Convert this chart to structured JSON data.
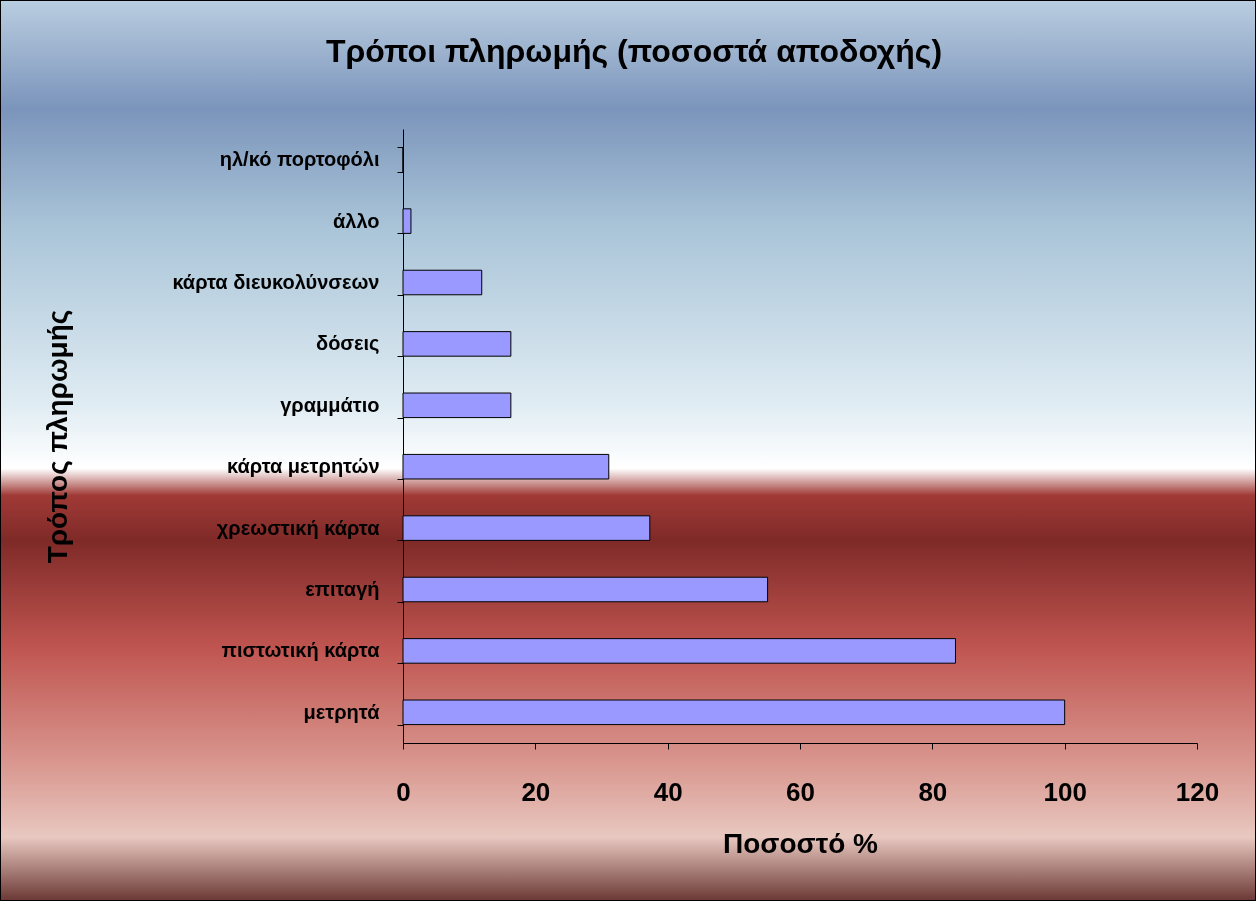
{
  "chart_data": {
    "type": "bar",
    "orientation": "horizontal",
    "title": "Τρόποι πληρωμής (ποσοστά αποδοχής)",
    "xlabel": "Ποσοστό %",
    "ylabel": "Τρόπος πληρωμής",
    "categories": [
      "ηλ/κό πορτοφόλι",
      "άλλο",
      "κάρτα διευκολύνσεων",
      "δόσεις",
      "γραμμάτιο",
      "κάρτα μετρητών",
      "χρεωστική κάρτα",
      "επιταγή",
      "πιστωτική κάρτα",
      "μετρητά"
    ],
    "values": [
      0,
      1.2,
      11.9,
      16.3,
      16.3,
      31.1,
      37.3,
      55.1,
      83.5,
      100
    ],
    "color": "#9999ff",
    "xlim": [
      0,
      120
    ],
    "xticks": [
      0,
      20,
      40,
      60,
      80,
      100,
      120
    ],
    "grid": false
  }
}
